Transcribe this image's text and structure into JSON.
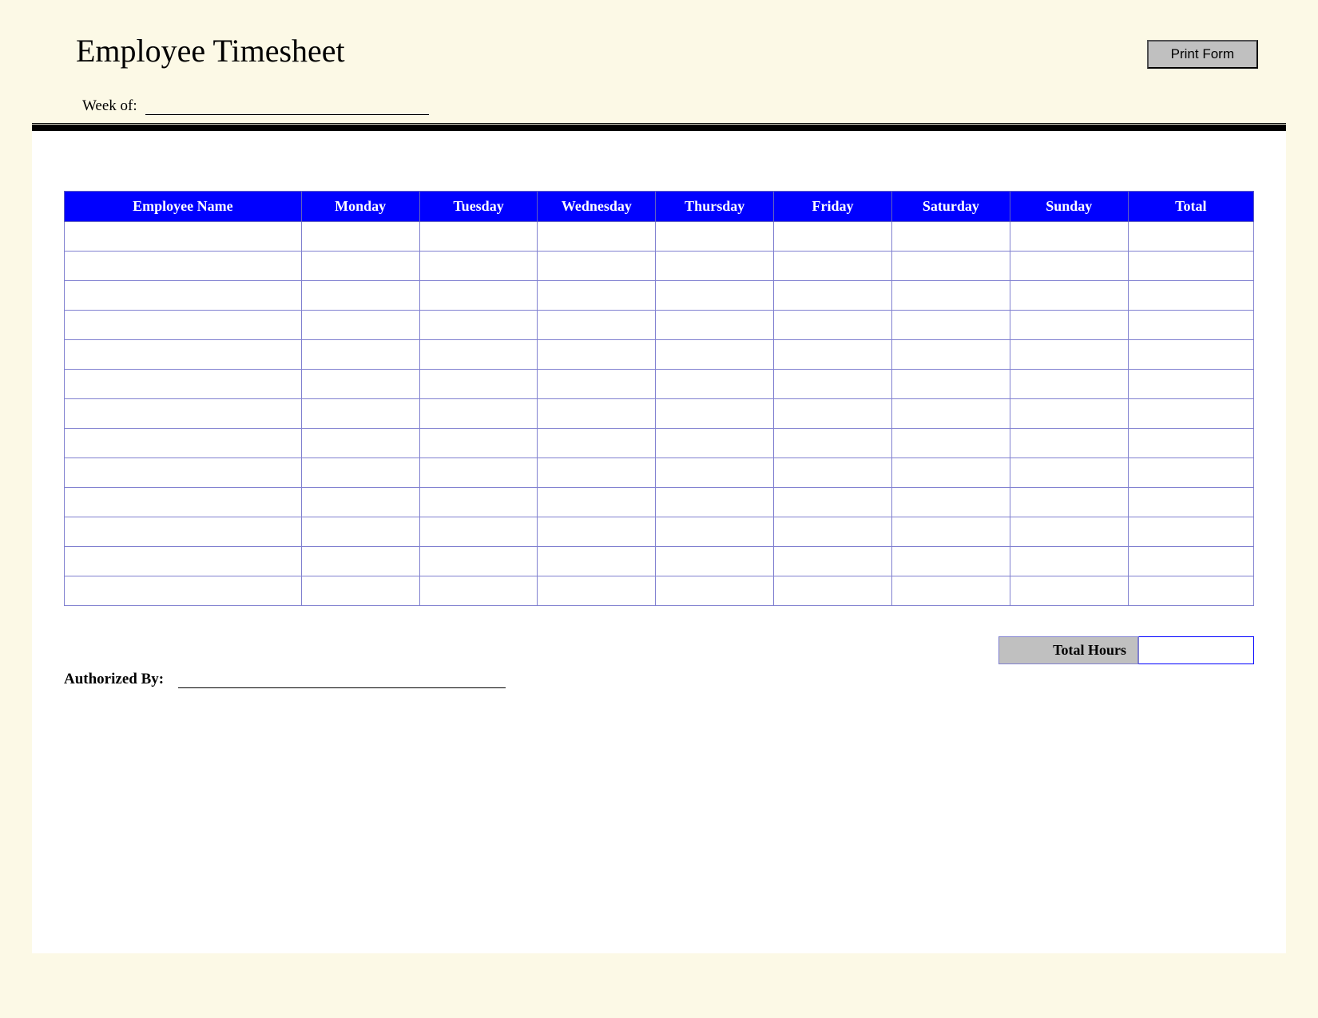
{
  "page": {
    "title": "Employee Timesheet",
    "background_color": "#fcf9e6",
    "panel_color": "#ffffff"
  },
  "buttons": {
    "print": "Print Form"
  },
  "fields": {
    "week_label": "Week of:",
    "week_value": "",
    "auth_label": "Authorized By:",
    "auth_value": ""
  },
  "table": {
    "header_bg": "#0000ff",
    "header_fg": "#ffffff",
    "border_color": "#8080d0",
    "columns": [
      "Employee Name",
      "Monday",
      "Tuesday",
      "Wednesday",
      "Thursday",
      "Friday",
      "Saturday",
      "Sunday",
      "Total"
    ],
    "row_count": 13,
    "rows": [
      [
        "",
        "",
        "",
        "",
        "",
        "",
        "",
        "",
        ""
      ],
      [
        "",
        "",
        "",
        "",
        "",
        "",
        "",
        "",
        ""
      ],
      [
        "",
        "",
        "",
        "",
        "",
        "",
        "",
        "",
        ""
      ],
      [
        "",
        "",
        "",
        "",
        "",
        "",
        "",
        "",
        ""
      ],
      [
        "",
        "",
        "",
        "",
        "",
        "",
        "",
        "",
        ""
      ],
      [
        "",
        "",
        "",
        "",
        "",
        "",
        "",
        "",
        ""
      ],
      [
        "",
        "",
        "",
        "",
        "",
        "",
        "",
        "",
        ""
      ],
      [
        "",
        "",
        "",
        "",
        "",
        "",
        "",
        "",
        ""
      ],
      [
        "",
        "",
        "",
        "",
        "",
        "",
        "",
        "",
        ""
      ],
      [
        "",
        "",
        "",
        "",
        "",
        "",
        "",
        "",
        ""
      ],
      [
        "",
        "",
        "",
        "",
        "",
        "",
        "",
        "",
        ""
      ],
      [
        "",
        "",
        "",
        "",
        "",
        "",
        "",
        "",
        ""
      ],
      [
        "",
        "",
        "",
        "",
        "",
        "",
        "",
        "",
        ""
      ]
    ]
  },
  "totals": {
    "label": "Total Hours",
    "value": ""
  }
}
